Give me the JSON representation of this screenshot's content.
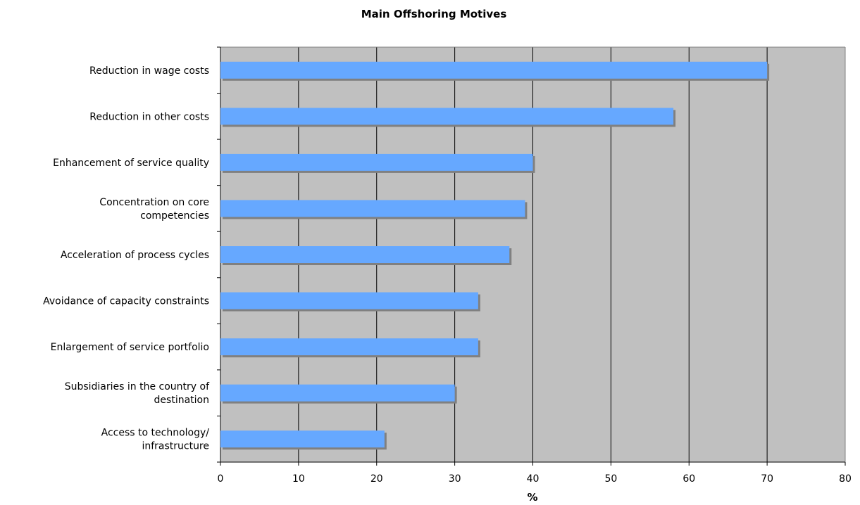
{
  "chart_data": {
    "type": "bar",
    "orientation": "horizontal",
    "title": "Main Offshoring Motives",
    "xlabel": "%",
    "ylabel": "",
    "xlim": [
      0,
      80
    ],
    "x_ticks": [
      0,
      10,
      20,
      30,
      40,
      50,
      60,
      70,
      80
    ],
    "categories": [
      "Reduction in wage costs",
      "Reduction in other costs",
      "Enhancement of service quality",
      "Concentration on core competencies",
      "Acceleration of process cycles",
      "Avoidance of capacity constraints",
      "Enlargement of service portfolio",
      "Subsidiaries in the country of destination",
      "Access to technology/ infrastructure"
    ],
    "category_label_lines": [
      [
        "Reduction in wage costs"
      ],
      [
        "Reduction in other costs"
      ],
      [
        "Enhancement of service quality"
      ],
      [
        "Concentration on core",
        "competencies"
      ],
      [
        "Acceleration of process cycles"
      ],
      [
        "Avoidance of capacity constraints"
      ],
      [
        "Enlargement of service portfolio"
      ],
      [
        "Subsidiaries in the country of",
        "destination"
      ],
      [
        "Access to technology/",
        "infrastructure"
      ]
    ],
    "values": [
      70,
      58,
      40,
      39,
      37,
      33,
      33,
      30,
      21
    ],
    "grid": true,
    "legend": "none",
    "colors": {
      "bar": "#66a8ff",
      "bar_shadow": "#808080",
      "plot_background": "#c0c0c0",
      "grid": "#000000"
    }
  }
}
